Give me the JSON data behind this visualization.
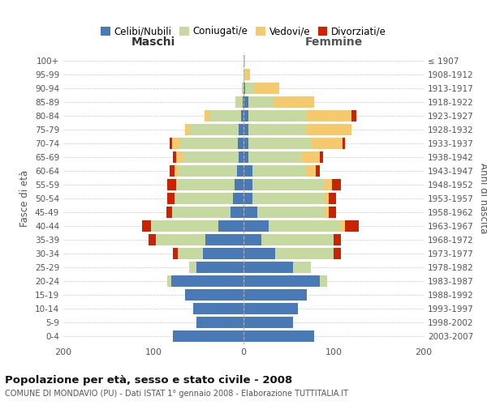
{
  "age_groups": [
    "0-4",
    "5-9",
    "10-14",
    "15-19",
    "20-24",
    "25-29",
    "30-34",
    "35-39",
    "40-44",
    "45-49",
    "50-54",
    "55-59",
    "60-64",
    "65-69",
    "70-74",
    "75-79",
    "80-84",
    "85-89",
    "90-94",
    "95-99",
    "100+"
  ],
  "birth_years": [
    "2003-2007",
    "1998-2002",
    "1993-1997",
    "1988-1992",
    "1983-1987",
    "1978-1982",
    "1973-1977",
    "1968-1972",
    "1963-1967",
    "1958-1962",
    "1953-1957",
    "1948-1952",
    "1943-1947",
    "1938-1942",
    "1933-1937",
    "1928-1932",
    "1923-1927",
    "1918-1922",
    "1913-1917",
    "1908-1912",
    "≤ 1907"
  ],
  "colors": {
    "celibi": "#4a7ab5",
    "coniugati": "#c5d9a0",
    "vedovi": "#f5c96e",
    "divorziati": "#cc2200"
  },
  "maschi": {
    "celibi": [
      78,
      52,
      56,
      65,
      80,
      52,
      45,
      42,
      28,
      14,
      12,
      10,
      7,
      5,
      6,
      5,
      3,
      1,
      0,
      0,
      0
    ],
    "coniugati": [
      0,
      0,
      0,
      0,
      5,
      8,
      28,
      55,
      75,
      65,
      65,
      65,
      65,
      62,
      65,
      55,
      35,
      8,
      2,
      0,
      0
    ],
    "vedovi": [
      0,
      0,
      0,
      0,
      0,
      0,
      0,
      0,
      0,
      0,
      0,
      0,
      5,
      8,
      8,
      5,
      5,
      0,
      0,
      0,
      0
    ],
    "divorziati": [
      0,
      0,
      0,
      0,
      0,
      0,
      5,
      8,
      10,
      7,
      8,
      10,
      5,
      3,
      3,
      0,
      0,
      0,
      0,
      0,
      0
    ]
  },
  "femmine": {
    "celibi": [
      78,
      55,
      60,
      70,
      85,
      55,
      35,
      20,
      28,
      15,
      10,
      10,
      10,
      5,
      5,
      5,
      5,
      5,
      2,
      0,
      0
    ],
    "coniugati": [
      0,
      0,
      0,
      0,
      8,
      20,
      65,
      80,
      80,
      75,
      80,
      80,
      60,
      60,
      70,
      65,
      65,
      28,
      10,
      2,
      0
    ],
    "vedovi": [
      0,
      0,
      0,
      0,
      0,
      0,
      0,
      0,
      5,
      5,
      5,
      8,
      10,
      20,
      35,
      50,
      50,
      45,
      28,
      5,
      2
    ],
    "divorziati": [
      0,
      0,
      0,
      0,
      0,
      0,
      8,
      8,
      15,
      8,
      8,
      10,
      5,
      3,
      3,
      0,
      5,
      0,
      0,
      0,
      0
    ]
  },
  "title": "Popolazione per età, sesso e stato civile - 2008",
  "subtitle": "COMUNE DI MONDAVIO (PU) - Dati ISTAT 1° gennaio 2008 - Elaborazione TUTTITALIA.IT",
  "xlabel_maschi": "Maschi",
  "xlabel_femmine": "Femmine",
  "ylabel_left": "Fasce di età",
  "ylabel_right": "Anni di nascita",
  "xlim": 200,
  "background_color": "#ffffff",
  "grid_color": "#cccccc",
  "legend_labels": [
    "Celibi/Nubili",
    "Coniugati/e",
    "Vedovi/e",
    "Divorziati/e"
  ]
}
